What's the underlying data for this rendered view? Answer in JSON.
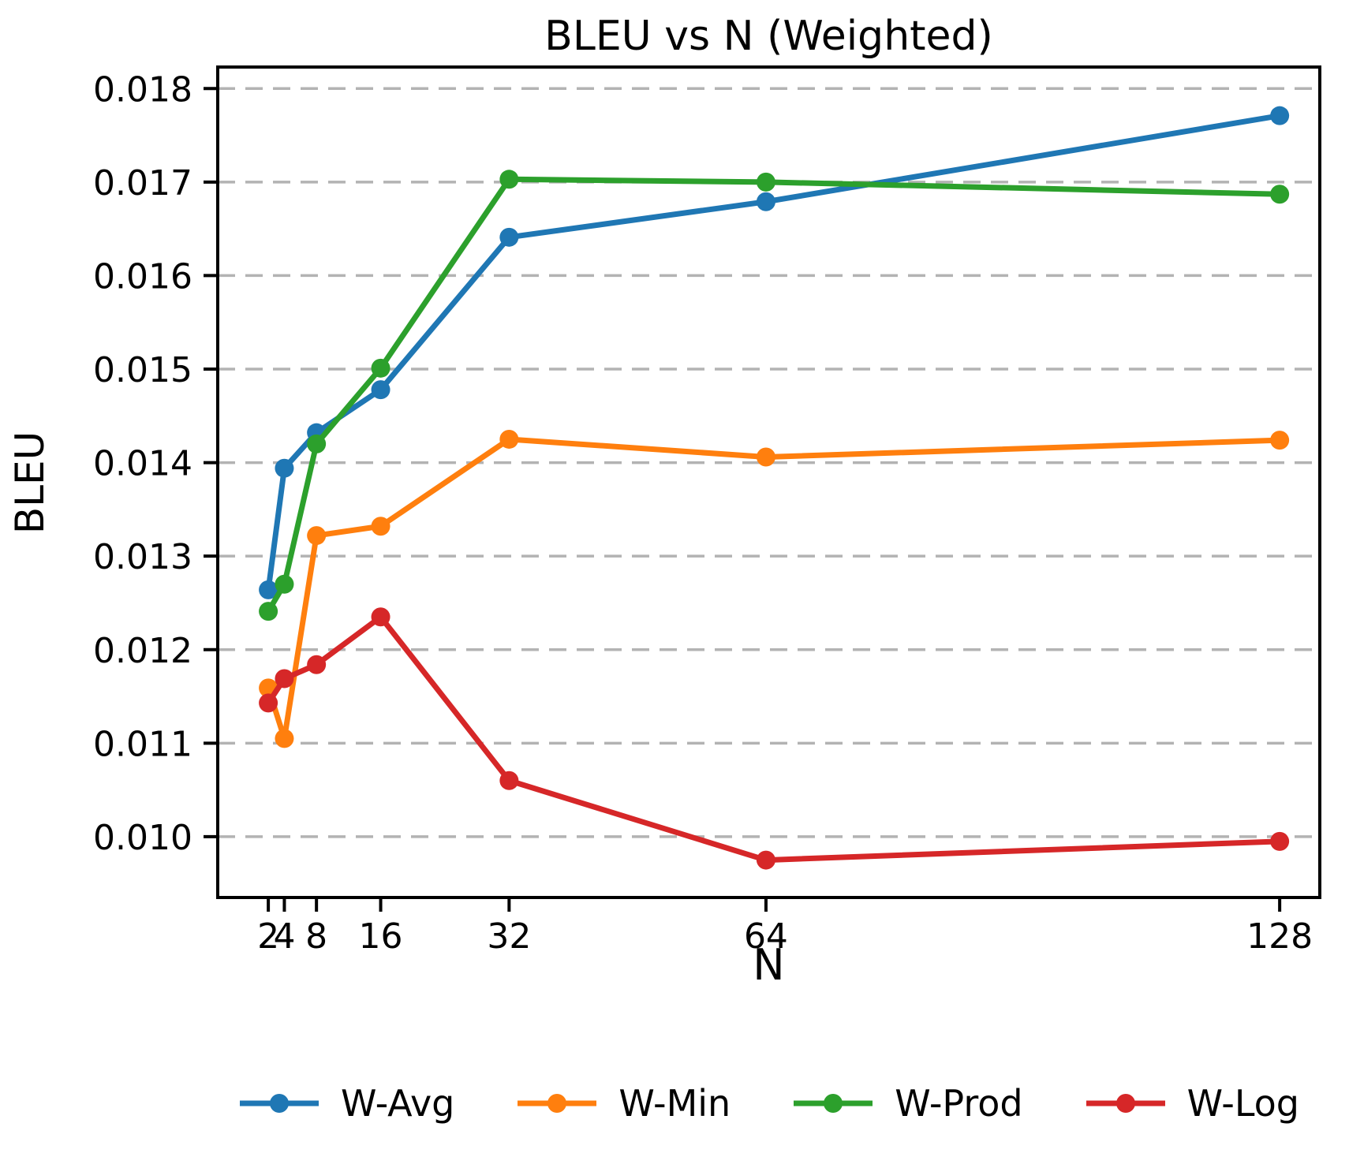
{
  "chart_data": {
    "type": "line",
    "title": "BLEU vs N (Weighted)",
    "xlabel": "N",
    "ylabel": "BLEU",
    "x": [
      2,
      4,
      8,
      16,
      32,
      64,
      128
    ],
    "x_tick_labels": [
      "2",
      "4",
      "8",
      "16",
      "32",
      "64",
      "128"
    ],
    "y_ticks": [
      0.01,
      0.011,
      0.012,
      0.013,
      0.014,
      0.015,
      0.016,
      0.017,
      0.018
    ],
    "y_tick_labels": [
      "0.010",
      "0.011",
      "0.012",
      "0.013",
      "0.014",
      "0.015",
      "0.016",
      "0.017",
      "0.018"
    ],
    "xlim": [
      -4.3,
      133.0
    ],
    "ylim": [
      0.00935,
      0.01823
    ],
    "x_scale": "linear",
    "grid": "horizontal-dashed",
    "grid_color": "#b3b3b3",
    "spine_color": "#000000",
    "legend_position": "bottom",
    "series": [
      {
        "name": "W-Avg",
        "color": "#1f77b4",
        "values": [
          0.01264,
          0.01394,
          0.01432,
          0.01478,
          0.01641,
          0.01679,
          0.01771
        ]
      },
      {
        "name": "W-Min",
        "color": "#ff7f0e",
        "values": [
          0.01159,
          0.01105,
          0.01322,
          0.01332,
          0.01425,
          0.01406,
          0.01424
        ]
      },
      {
        "name": "W-Prod",
        "color": "#2ca02c",
        "values": [
          0.01241,
          0.0127,
          0.0142,
          0.01501,
          0.01703,
          0.017,
          0.01687
        ]
      },
      {
        "name": "W-Log",
        "color": "#d62728",
        "values": [
          0.01143,
          0.01169,
          0.01184,
          0.01235,
          0.0106,
          0.00975,
          0.00995
        ]
      }
    ]
  }
}
